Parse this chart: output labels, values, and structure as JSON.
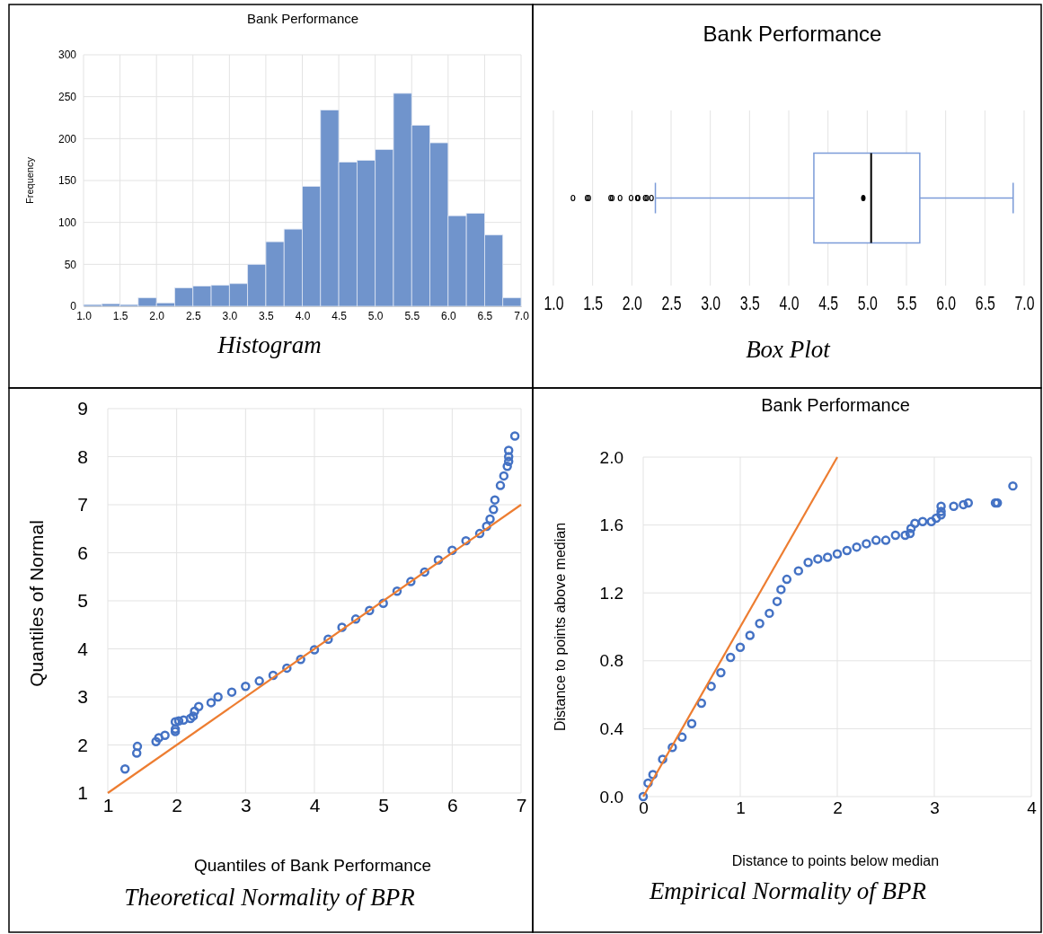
{
  "chart_data": [
    {
      "type": "histogram",
      "title": "Bank Performance",
      "ylabel": "Frequency",
      "annotations": [
        "Histogram"
      ],
      "color": "#7094cc",
      "bins": [
        1.0,
        1.25,
        1.5,
        1.75,
        2.0,
        2.25,
        2.5,
        2.75,
        3.0,
        3.25,
        3.5,
        3.75,
        4.0,
        4.25,
        4.5,
        4.75,
        5.0,
        5.25,
        5.5,
        5.75,
        6.0,
        6.25,
        6.5,
        6.75,
        7.0
      ],
      "values": [
        2,
        3,
        2,
        10,
        4,
        22,
        24,
        25,
        27,
        50,
        77,
        92,
        143,
        234,
        172,
        174,
        187,
        254,
        216,
        195,
        108,
        111,
        85,
        10
      ],
      "xlim": [
        1,
        7
      ],
      "xticks": [
        {
          "value": 1,
          "label": "1.0"
        },
        1.5,
        {
          "value": 2,
          "label": "2.0"
        },
        2.5,
        {
          "value": 3,
          "label": "3.0"
        },
        3.5,
        {
          "value": 4,
          "label": "4.0"
        },
        4.5,
        {
          "value": 5,
          "label": "5.0"
        },
        5.5,
        {
          "value": 6,
          "label": "6.0"
        },
        6.5,
        {
          "value": 7,
          "label": "7.0"
        }
      ],
      "ylim": [
        0,
        300
      ],
      "yticks": [
        0,
        50,
        100,
        150,
        200,
        250,
        300
      ],
      "grid": true
    },
    {
      "type": "box",
      "title": "Bank Performance",
      "annotations": [
        "Box Plot"
      ],
      "orientation": "horizontal",
      "color": "#7b9bd8",
      "categories": [
        null
      ],
      "boxes": [
        {
          "low": 2.3,
          "q1": 4.32,
          "median": 5.05,
          "q3": 5.67,
          "high": 6.86,
          "mean": 4.95,
          "outliers": [
            1.25,
            1.43,
            1.45,
            1.73,
            1.75,
            1.85,
            1.99,
            2.07,
            2.08,
            2.17,
            2.19,
            2.25
          ]
        }
      ],
      "xlim": [
        1,
        7
      ],
      "xticks": [
        {
          "value": 1,
          "label": "1.0"
        },
        1.5,
        {
          "value": 2,
          "label": "2.0"
        },
        2.5,
        {
          "value": 3,
          "label": "3.0"
        },
        3.5,
        {
          "value": 4,
          "label": "4.0"
        },
        4.5,
        {
          "value": 5,
          "label": "5.0"
        },
        5.5,
        {
          "value": 6,
          "label": "6.0"
        },
        6.5,
        {
          "value": 7,
          "label": "7.0"
        }
      ],
      "grid": "x"
    },
    {
      "type": "scatter",
      "xlabel": "Quantiles of Bank Performance",
      "ylabel": "Quantiles of Normal",
      "annotations": [
        "Theoretical Normality of BPR"
      ],
      "series": [
        {
          "type": "scatter",
          "marker": "circle",
          "color": "#4472c4",
          "x": [
            1.25,
            1.42,
            1.43,
            1.7,
            1.74,
            1.83,
            1.98,
            1.98,
            1.98,
            2.03,
            2.1,
            2.2,
            2.24,
            2.26,
            2.32,
            2.5,
            2.6,
            2.8,
            3.0,
            3.2,
            3.4,
            3.6,
            3.8,
            4.0,
            4.2,
            4.4,
            4.6,
            4.8,
            5.0,
            5.2,
            5.4,
            5.6,
            5.8,
            6.0,
            6.2,
            6.4,
            6.5,
            6.55,
            6.6,
            6.62,
            6.7,
            6.75,
            6.8,
            6.82,
            6.82,
            6.82,
            6.91
          ],
          "values": [
            1.5,
            1.83,
            1.97,
            2.07,
            2.15,
            2.2,
            2.28,
            2.33,
            2.48,
            2.5,
            2.52,
            2.55,
            2.6,
            2.7,
            2.8,
            2.88,
            3.0,
            3.1,
            3.22,
            3.33,
            3.45,
            3.6,
            3.78,
            3.98,
            4.2,
            4.45,
            4.62,
            4.8,
            4.95,
            5.2,
            5.4,
            5.6,
            5.85,
            6.05,
            6.25,
            6.4,
            6.55,
            6.7,
            6.9,
            7.1,
            7.4,
            7.6,
            7.8,
            7.9,
            8.0,
            8.13,
            8.43
          ]
        },
        {
          "type": "line",
          "color": "#ed7d31",
          "x": [
            1,
            7
          ],
          "values": [
            1,
            7
          ]
        }
      ],
      "xlim": [
        1,
        7
      ],
      "xticks": [
        1,
        2,
        3,
        4,
        5,
        6,
        7
      ],
      "ylim": [
        1,
        9
      ],
      "yticks": [
        1,
        2,
        3,
        4,
        5,
        6,
        7,
        8,
        9
      ],
      "grid": true
    },
    {
      "type": "scatter",
      "title": "Bank Performance",
      "xlabel": "Distance to points below median",
      "ylabel": "Distance to points above median",
      "annotations": [
        "Empirical Normality of BPR"
      ],
      "series": [
        {
          "type": "scatter",
          "marker": "circle",
          "color": "#4472c4",
          "x": [
            0,
            0.05,
            0.1,
            0.2,
            0.3,
            0.4,
            0.5,
            0.6,
            0.7,
            0.8,
            0.9,
            1.0,
            1.1,
            1.2,
            1.3,
            1.38,
            1.42,
            1.48,
            1.6,
            1.7,
            1.8,
            1.9,
            2.0,
            2.1,
            2.2,
            2.3,
            2.4,
            2.5,
            2.6,
            2.7,
            2.75,
            2.76,
            2.8,
            2.88,
            2.97,
            3.02,
            3.07,
            3.07,
            3.07,
            3.2,
            3.3,
            3.35,
            3.63,
            3.65,
            3.81
          ],
          "values": [
            0,
            0.08,
            0.13,
            0.22,
            0.29,
            0.35,
            0.43,
            0.55,
            0.65,
            0.73,
            0.82,
            0.88,
            0.95,
            1.02,
            1.08,
            1.15,
            1.22,
            1.28,
            1.33,
            1.38,
            1.4,
            1.41,
            1.43,
            1.45,
            1.47,
            1.49,
            1.51,
            1.51,
            1.54,
            1.54,
            1.55,
            1.58,
            1.61,
            1.62,
            1.62,
            1.64,
            1.66,
            1.68,
            1.71,
            1.71,
            1.72,
            1.73,
            1.73,
            1.73,
            1.83
          ]
        },
        {
          "type": "line",
          "color": "#ed7d31",
          "x": [
            0,
            2
          ],
          "values": [
            0,
            2
          ]
        }
      ],
      "xlim": [
        0,
        4
      ],
      "xticks": [
        0,
        1,
        2,
        3,
        4
      ],
      "ylim": [
        0,
        2
      ],
      "yticks": [
        {
          "value": 0,
          "label": "0.0"
        },
        0.4,
        0.8,
        1.2,
        1.6,
        {
          "value": 2,
          "label": "2.0"
        }
      ],
      "grid": true
    }
  ]
}
